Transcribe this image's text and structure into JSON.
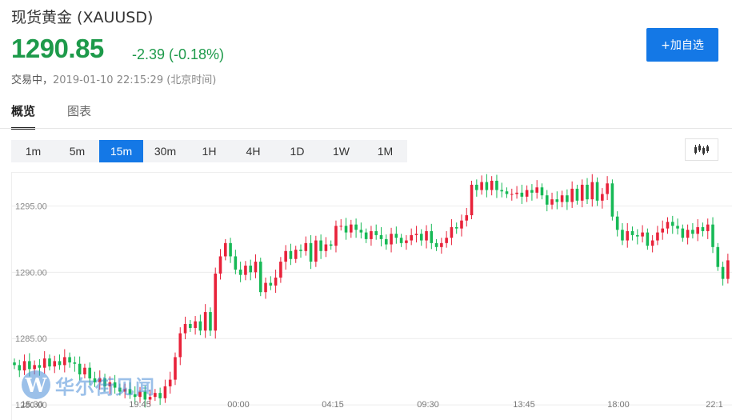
{
  "header": {
    "title": "现货黄金 (XAUUSD)",
    "price": "1290.85",
    "change": "-2.39 (-0.18%)",
    "status": "交易中，",
    "timestamp": "2019-01-10 22:15:29 (北京时间)",
    "add_button": "+加自选"
  },
  "tabs": [
    {
      "label": "概览",
      "active": true
    },
    {
      "label": "图表",
      "active": false
    }
  ],
  "periods": [
    {
      "label": "1m",
      "active": false
    },
    {
      "label": "5m",
      "active": false
    },
    {
      "label": "15m",
      "active": true
    },
    {
      "label": "30m",
      "active": false
    },
    {
      "label": "1H",
      "active": false
    },
    {
      "label": "4H",
      "active": false
    },
    {
      "label": "1D",
      "active": false
    },
    {
      "label": "1W",
      "active": false
    },
    {
      "label": "1M",
      "active": false
    }
  ],
  "chart_type_icon": "candlestick-icon",
  "watermark": {
    "logo": "W",
    "text": "华尔街见闻"
  },
  "colors": {
    "up": "#e8223a",
    "down": "#17b956",
    "accent": "#1478e6",
    "price": "#1d9a4a"
  },
  "chart_data": {
    "type": "candlestick",
    "symbol": "XAUUSD",
    "interval": "15m",
    "y_ticks": [
      "1295.00",
      "1290.00",
      "1285.00",
      "1280.00"
    ],
    "x_ticks": [
      "15:30",
      "19:45",
      "00:00",
      "04:15",
      "09:30",
      "13:45",
      "18:00",
      "22:1"
    ],
    "ylim": [
      1278.8,
      1297.5
    ],
    "grid": true,
    "closes": [
      1283.0,
      1282.6,
      1283.3,
      1282.7,
      1283.0,
      1282.8,
      1283.5,
      1282.9,
      1283.3,
      1283.0,
      1283.6,
      1283.2,
      1283.1,
      1282.3,
      1282.8,
      1282.0,
      1281.7,
      1282.0,
      1281.4,
      1281.7,
      1281.3,
      1281.0,
      1281.2,
      1280.8,
      1280.6,
      1281.0,
      1280.4,
      1280.6,
      1280.9,
      1280.5,
      1281.4,
      1281.9,
      1283.6,
      1285.4,
      1286.1,
      1285.8,
      1286.3,
      1285.6,
      1287.0,
      1285.6,
      1289.9,
      1291.2,
      1292.2,
      1291.2,
      1290.2,
      1289.8,
      1290.5,
      1290.0,
      1290.8,
      1288.5,
      1289.2,
      1289.0,
      1289.6,
      1290.8,
      1291.6,
      1291.0,
      1291.7,
      1291.6,
      1292.2,
      1290.8,
      1292.4,
      1291.6,
      1292.1,
      1292.0,
      1293.5,
      1293.5,
      1293.0,
      1293.6,
      1293.2,
      1293.0,
      1292.5,
      1293.1,
      1292.8,
      1292.5,
      1292.1,
      1292.9,
      1292.6,
      1292.2,
      1292.4,
      1292.8,
      1292.9,
      1292.4,
      1293.1,
      1292.2,
      1291.9,
      1292.2,
      1292.6,
      1293.4,
      1293.3,
      1293.9,
      1294.3,
      1296.6,
      1296.2,
      1296.8,
      1296.2,
      1296.9,
      1296.2,
      1296.1,
      1295.9,
      1295.9,
      1296.0,
      1295.7,
      1296.2,
      1296.0,
      1296.4,
      1295.8,
      1295.1,
      1295.5,
      1295.3,
      1295.8,
      1295.3,
      1296.3,
      1295.4,
      1296.6,
      1295.5,
      1296.8,
      1295.4,
      1295.9,
      1296.7,
      1294.2,
      1293.2,
      1292.4,
      1293.1,
      1292.8,
      1292.7,
      1293.0,
      1292.0,
      1292.4,
      1293.0,
      1293.3,
      1293.8,
      1293.5,
      1293.3,
      1292.6,
      1293.2,
      1292.9,
      1293.4,
      1293.1,
      1293.6,
      1291.9,
      1290.4,
      1289.5,
      1290.9
    ]
  }
}
